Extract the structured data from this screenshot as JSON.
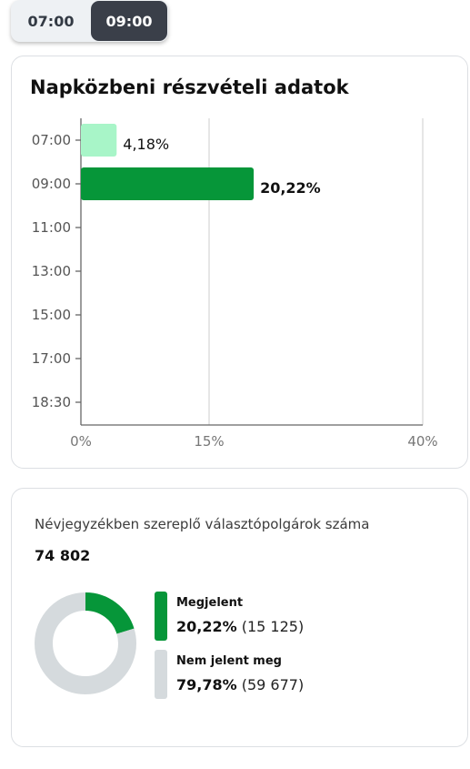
{
  "time_toggle": {
    "options": [
      {
        "label": "07:00",
        "selected": false
      },
      {
        "label": "09:00",
        "selected": true
      }
    ],
    "colors": {
      "selected_bg": "#3a3f49",
      "bg": "#eef1f4"
    }
  },
  "participation_card": {
    "title": "Napközbeni részvételi adatok"
  },
  "chart_data": {
    "type": "bar",
    "orientation": "horizontal",
    "title": "Napközbeni részvételi adatok",
    "categories": [
      "07:00",
      "09:00",
      "11:00",
      "13:00",
      "15:00",
      "17:00",
      "18:30"
    ],
    "values": [
      4.18,
      20.22,
      null,
      null,
      null,
      null,
      null
    ],
    "value_labels": [
      "4,18%",
      "20,22%",
      "",
      "",
      "",
      "",
      ""
    ],
    "colors": [
      "#a8f5c8",
      "#069639"
    ],
    "x_ticks": [
      {
        "value": 0,
        "label": "0%"
      },
      {
        "value": 15,
        "label": "15%"
      },
      {
        "value": 40,
        "label": "40%"
      }
    ],
    "xlim": [
      0,
      40
    ],
    "grid": true,
    "legend": "none"
  },
  "voters_card": {
    "label": "Névjegyzékben szereplő választópolgárok száma",
    "total": "74 802",
    "legend": [
      {
        "name": "Megjelent",
        "percent": "20,22%",
        "count": "(15 125)",
        "fraction": 0.2022,
        "color": "#069639"
      },
      {
        "name": "Nem jelent meg",
        "percent": "79,78%",
        "count": "(59 677)",
        "fraction": 0.7978,
        "color": "#d5dadd"
      }
    ]
  }
}
